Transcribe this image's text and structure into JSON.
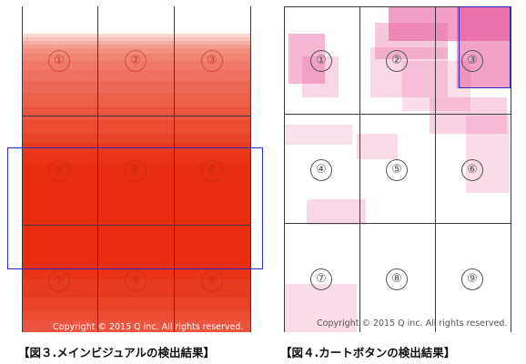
{
  "left_panel": {
    "cells": [
      "①",
      "②",
      "③",
      "④",
      "⑤",
      "⑥",
      "⑦",
      "⑧",
      "⑨"
    ],
    "copyright": "Copyright © 2015  Q inc. All rights reserved.",
    "caption": "【図３.メインビジュアルの検出結果】",
    "heat_color": "#e8280a"
  },
  "right_panel": {
    "cells": [
      "①",
      "②",
      "③",
      "④",
      "⑤",
      "⑥",
      "⑦",
      "⑧",
      "⑨"
    ],
    "copyright": "Copyright © 2015  Q inc. All rights reserved.",
    "caption": "【図４.カートボタンの検出結果】",
    "heat_color": "#e8609a"
  },
  "colors": {
    "box_outline": "#2929c8",
    "grid_line": "#3b3b3b"
  }
}
